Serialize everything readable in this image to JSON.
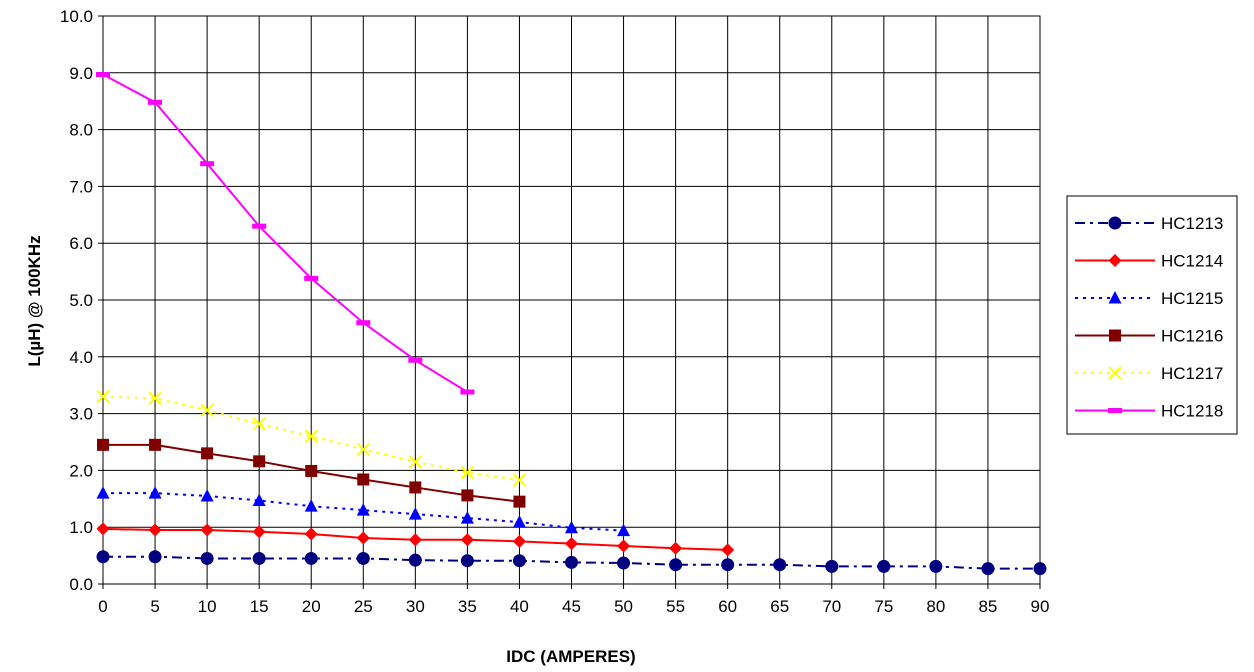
{
  "chart_data": {
    "type": "line",
    "title": "",
    "xlabel": "IDC (AMPERES)",
    "ylabel": "L(µH)  @ 100KHz",
    "xlim": [
      0,
      90
    ],
    "ylim": [
      0,
      10
    ],
    "x_ticks": [
      0,
      5,
      10,
      15,
      20,
      25,
      30,
      35,
      40,
      45,
      50,
      55,
      60,
      65,
      70,
      75,
      80,
      85,
      90
    ],
    "y_ticks": [
      "0.0",
      "1.0",
      "2.0",
      "3.0",
      "4.0",
      "5.0",
      "6.0",
      "7.0",
      "8.0",
      "9.0",
      "10.0"
    ],
    "grid": true,
    "legend_position": "right",
    "series": [
      {
        "name": "HC1213",
        "color": "#000080",
        "marker": "circle",
        "line_style": "dashdot",
        "x": [
          0,
          5,
          10,
          15,
          20,
          25,
          30,
          35,
          40,
          45,
          50,
          55,
          60,
          65,
          70,
          75,
          80,
          85,
          90
        ],
        "y": [
          0.48,
          0.48,
          0.45,
          0.45,
          0.45,
          0.45,
          0.42,
          0.41,
          0.41,
          0.38,
          0.37,
          0.34,
          0.34,
          0.34,
          0.31,
          0.31,
          0.31,
          0.27,
          0.27
        ]
      },
      {
        "name": "HC1214",
        "color": "#ff0000",
        "marker": "diamond",
        "line_style": "solid",
        "x": [
          0,
          5,
          10,
          15,
          20,
          25,
          30,
          35,
          40,
          45,
          50,
          55,
          60
        ],
        "y": [
          0.97,
          0.95,
          0.95,
          0.92,
          0.88,
          0.81,
          0.78,
          0.78,
          0.75,
          0.71,
          0.67,
          0.63,
          0.6
        ]
      },
      {
        "name": "HC1215",
        "color": "#0000ff",
        "marker": "triangle",
        "line_style": "dotted",
        "x": [
          0,
          5,
          10,
          15,
          20,
          25,
          30,
          35,
          40,
          45,
          50
        ],
        "y": [
          1.6,
          1.6,
          1.55,
          1.47,
          1.37,
          1.3,
          1.23,
          1.16,
          1.09,
          0.99,
          0.94
        ]
      },
      {
        "name": "HC1216",
        "color": "#800000",
        "marker": "square",
        "line_style": "solid",
        "x": [
          0,
          5,
          10,
          15,
          20,
          25,
          30,
          35,
          40
        ],
        "y": [
          2.45,
          2.45,
          2.3,
          2.16,
          1.99,
          1.84,
          1.7,
          1.56,
          1.45
        ]
      },
      {
        "name": "HC1217",
        "color": "#ffff00",
        "marker": "x",
        "line_style": "dotted",
        "x": [
          0,
          5,
          10,
          15,
          20,
          25,
          30,
          35,
          40
        ],
        "y": [
          3.3,
          3.27,
          3.06,
          2.82,
          2.6,
          2.37,
          2.15,
          1.96,
          1.83
        ]
      },
      {
        "name": "HC1218",
        "color": "#ff00ff",
        "marker": "dash",
        "line_style": "solid",
        "x": [
          0,
          5,
          10,
          15,
          20,
          25,
          30,
          35
        ],
        "y": [
          8.97,
          8.48,
          7.4,
          6.3,
          5.38,
          4.6,
          3.94,
          3.38
        ]
      }
    ]
  }
}
